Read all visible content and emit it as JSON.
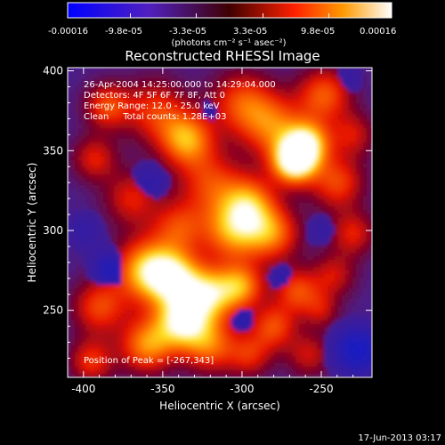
{
  "colorbar": {
    "tick_labels": [
      "-0.00016",
      "-9.8e-05",
      "-3.3e-05",
      "3.3e-05",
      "9.8e-05",
      "0.00016"
    ],
    "unit_label": "(photons cm⁻² s⁻¹ asec⁻²)",
    "range": [
      -0.00016,
      0.00016
    ]
  },
  "chart_data": {
    "type": "heatmap",
    "title": "Reconstructed RHESSI Image",
    "xlabel": "Heliocentric X (arcsec)",
    "ylabel": "Heliocentric Y (arcsec)",
    "xlim": [
      -410,
      -218
    ],
    "ylim": [
      208,
      402
    ],
    "x_ticks": [
      -400,
      -350,
      -300,
      -250
    ],
    "y_ticks": [
      250,
      300,
      350,
      400
    ],
    "annotations": [
      "26-Apr-2004 14:25:00.000 to 14:29:04.000",
      "Detectors: 4F 5F 6F 7F 8F, Att 0",
      "Energy Range: 12.0 - 25.0 keV",
      "Clean     Total counts: 1.28E+03"
    ],
    "peak_label": "Position of Peak = [-267,343]",
    "peak": [
      -267,
      343
    ],
    "colormap": "blue-purple-red-yellow-white",
    "blobs": [
      {
        "x": -267,
        "y": 343,
        "r": 10,
        "v": 1.0
      },
      {
        "x": -258,
        "y": 355,
        "r": 10,
        "v": 0.7
      },
      {
        "x": -280,
        "y": 365,
        "r": 14,
        "v": 0.55
      },
      {
        "x": -300,
        "y": 380,
        "r": 14,
        "v": 0.5
      },
      {
        "x": -335,
        "y": 357,
        "r": 12,
        "v": 0.7
      },
      {
        "x": -355,
        "y": 375,
        "r": 14,
        "v": 0.45
      },
      {
        "x": -385,
        "y": 378,
        "r": 10,
        "v": 0.5
      },
      {
        "x": -248,
        "y": 385,
        "r": 12,
        "v": 0.55
      },
      {
        "x": -230,
        "y": 360,
        "r": 10,
        "v": 0.35
      },
      {
        "x": -240,
        "y": 330,
        "r": 12,
        "v": 0.5
      },
      {
        "x": -320,
        "y": 330,
        "r": 14,
        "v": 0.45
      },
      {
        "x": -295,
        "y": 318,
        "r": 12,
        "v": 0.55
      },
      {
        "x": -370,
        "y": 320,
        "r": 12,
        "v": 0.4
      },
      {
        "x": -393,
        "y": 345,
        "r": 10,
        "v": 0.4
      },
      {
        "x": -305,
        "y": 300,
        "r": 14,
        "v": 0.7
      },
      {
        "x": -280,
        "y": 298,
        "r": 12,
        "v": 0.55
      },
      {
        "x": -340,
        "y": 302,
        "r": 12,
        "v": 0.45
      },
      {
        "x": -360,
        "y": 275,
        "r": 14,
        "v": 0.8
      },
      {
        "x": -342,
        "y": 270,
        "r": 12,
        "v": 0.7
      },
      {
        "x": -320,
        "y": 260,
        "r": 12,
        "v": 0.75
      },
      {
        "x": -300,
        "y": 265,
        "r": 10,
        "v": 0.6
      },
      {
        "x": -338,
        "y": 243,
        "r": 12,
        "v": 0.85
      },
      {
        "x": -360,
        "y": 228,
        "r": 12,
        "v": 0.65
      },
      {
        "x": -320,
        "y": 228,
        "r": 12,
        "v": 0.55
      },
      {
        "x": -390,
        "y": 252,
        "r": 12,
        "v": 0.5
      },
      {
        "x": -395,
        "y": 218,
        "r": 10,
        "v": 0.45
      },
      {
        "x": -280,
        "y": 240,
        "r": 10,
        "v": 0.5
      },
      {
        "x": -265,
        "y": 262,
        "r": 10,
        "v": 0.5
      },
      {
        "x": -242,
        "y": 272,
        "r": 10,
        "v": 0.35
      },
      {
        "x": -230,
        "y": 298,
        "r": 10,
        "v": 0.4
      },
      {
        "x": -295,
        "y": 222,
        "r": 10,
        "v": 0.4
      },
      {
        "x": -258,
        "y": 222,
        "r": 10,
        "v": 0.35
      },
      {
        "x": -250,
        "y": 250,
        "r": 8,
        "v": 0.3
      }
    ],
    "negatives": [
      {
        "x": -227,
        "y": 225,
        "r": 12,
        "v": 0.9
      },
      {
        "x": -383,
        "y": 275,
        "r": 9,
        "v": 0.7
      },
      {
        "x": -300,
        "y": 245,
        "r": 8,
        "v": 0.55
      },
      {
        "x": -275,
        "y": 270,
        "r": 8,
        "v": 0.45
      },
      {
        "x": -358,
        "y": 330,
        "r": 10,
        "v": 0.45
      },
      {
        "x": -400,
        "y": 300,
        "r": 10,
        "v": 0.4
      },
      {
        "x": -320,
        "y": 373,
        "r": 8,
        "v": 0.4
      },
      {
        "x": -250,
        "y": 300,
        "r": 8,
        "v": 0.35
      },
      {
        "x": -370,
        "y": 260,
        "r": 6,
        "v": 0.35
      },
      {
        "x": -233,
        "y": 395,
        "r": 8,
        "v": 0.35
      }
    ]
  },
  "footer": {
    "timestamp": "17-Jun-2013 03:17"
  }
}
